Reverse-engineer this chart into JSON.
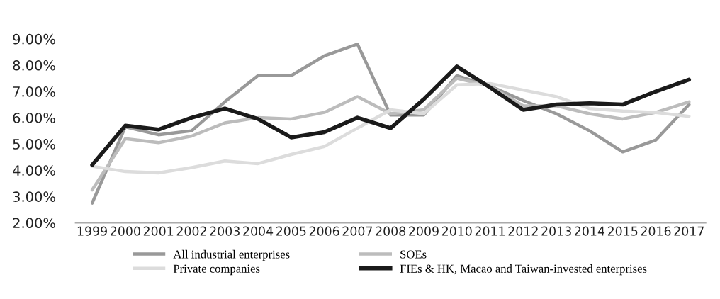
{
  "chart_data": {
    "type": "line",
    "categories": [
      "1999",
      "2000",
      "2001",
      "2002",
      "2003",
      "2004",
      "2005",
      "2006",
      "2007",
      "2008",
      "2009",
      "2010",
      "2011",
      "2012",
      "2013",
      "2014",
      "2015",
      "2016",
      "2017"
    ],
    "series": [
      {
        "name": "All industrial enterprises",
        "color": "#999999",
        "values": [
          2.75,
          5.65,
          5.35,
          5.5,
          6.6,
          7.6,
          7.6,
          8.35,
          8.8,
          6.1,
          6.1,
          7.6,
          7.2,
          6.65,
          6.15,
          5.5,
          4.7,
          5.15,
          6.5
        ]
      },
      {
        "name": "SOEs",
        "color": "#bcbcbc",
        "values": [
          3.25,
          5.2,
          5.05,
          5.3,
          5.8,
          6.0,
          5.95,
          6.2,
          6.8,
          6.15,
          6.3,
          7.5,
          7.2,
          6.45,
          6.45,
          6.15,
          5.95,
          6.2,
          6.6
        ]
      },
      {
        "name": "Private companies",
        "color": "#dcdcdc",
        "values": [
          4.15,
          3.95,
          3.9,
          4.1,
          4.35,
          4.25,
          4.6,
          4.9,
          5.6,
          6.3,
          6.15,
          7.25,
          7.3,
          7.05,
          6.8,
          6.35,
          6.25,
          6.2,
          6.05
        ]
      },
      {
        "name": "FIEs & HK, Macao and Taiwan-invested enterprises",
        "color": "#1a1a1a",
        "values": [
          4.2,
          5.7,
          5.55,
          6.0,
          6.35,
          5.95,
          5.25,
          5.45,
          6.0,
          5.6,
          6.7,
          7.95,
          7.15,
          6.3,
          6.5,
          6.55,
          6.5,
          7.0,
          7.45
        ]
      }
    ],
    "ylim": [
      2,
      9
    ],
    "yticks": [
      {
        "value": 2,
        "label": "2.00%"
      },
      {
        "value": 3,
        "label": "3.00%"
      },
      {
        "value": 4,
        "label": "4.00%"
      },
      {
        "value": 5,
        "label": "5.00%"
      },
      {
        "value": 6,
        "label": "6.00%"
      },
      {
        "value": 7,
        "label": "7.00%"
      },
      {
        "value": 8,
        "label": "8.00%"
      },
      {
        "value": 9,
        "label": "9.00%"
      }
    ],
    "grid": false,
    "legend": "bottom",
    "marker": "none",
    "line_style": "solid"
  }
}
